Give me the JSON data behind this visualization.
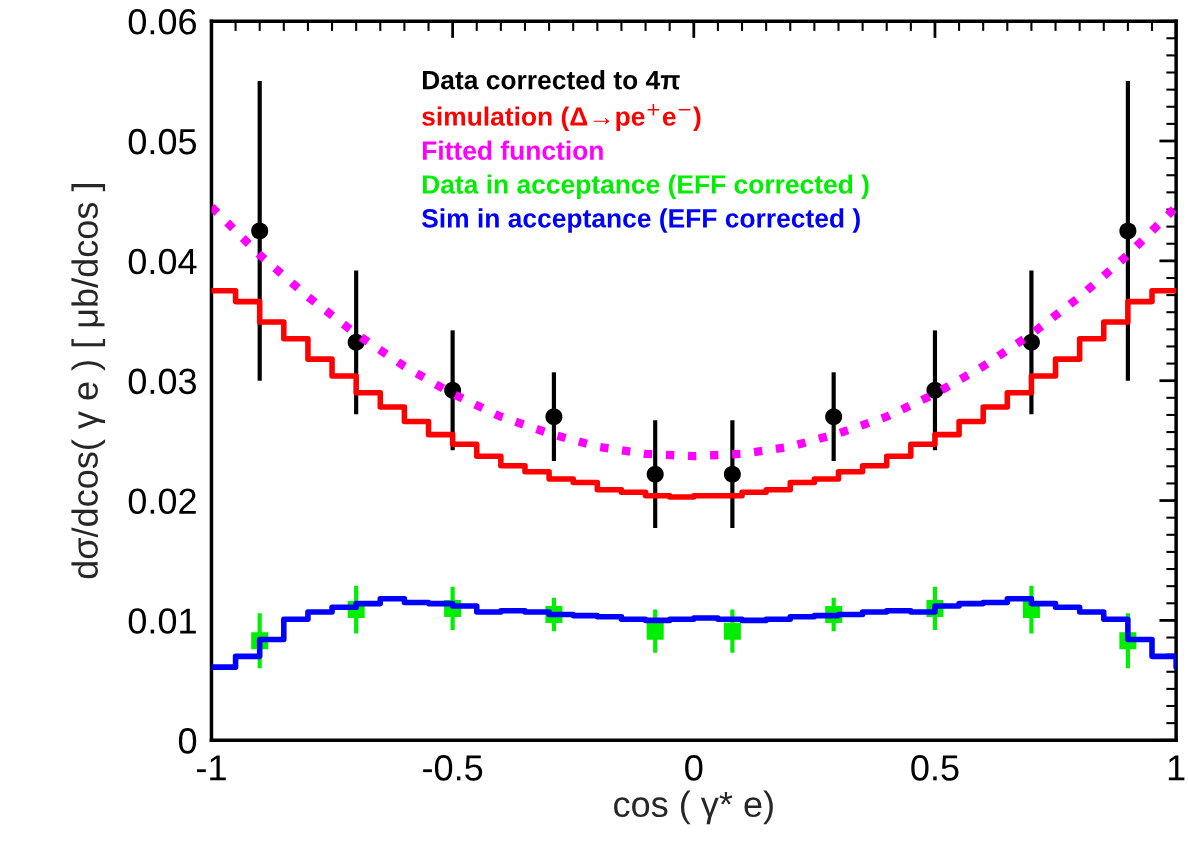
{
  "chart_data": {
    "type": "line",
    "xlabel": "cos ( γ* e)",
    "ylabel": "dσ/dcos( γ e ) [ μb/dcos ]",
    "xlim": [
      -1,
      1
    ],
    "ylim": [
      0,
      0.06
    ],
    "xticks": [
      -1,
      -0.5,
      0,
      0.5,
      1
    ],
    "yticks": [
      0,
      0.01,
      0.02,
      0.03,
      0.04,
      0.05,
      0.06
    ],
    "grid": false,
    "legend": "top",
    "series": [
      {
        "name": "Data corrected to 4π",
        "type": "scatter",
        "marker": "circle",
        "color": "#000000",
        "x": [
          -0.9,
          -0.7,
          -0.5,
          -0.29,
          -0.08,
          0.08,
          0.29,
          0.5,
          0.7,
          0.9
        ],
        "values": [
          0.0425,
          0.0332,
          0.0292,
          0.027,
          0.0222,
          0.0222,
          0.027,
          0.0292,
          0.0332,
          0.0425
        ],
        "errors": [
          0.0125,
          0.006,
          0.005,
          0.0037,
          0.0045,
          0.0045,
          0.0037,
          0.005,
          0.006,
          0.0125
        ]
      },
      {
        "name": "simulation (Δ→pe$^{+}$e$^{−}$)",
        "type": "step",
        "color": "#ff0000",
        "x": [
          -1,
          -0.95,
          -0.9,
          -0.85,
          -0.8,
          -0.75,
          -0.7,
          -0.65,
          -0.6,
          -0.55,
          -0.5,
          -0.45,
          -0.4,
          -0.35,
          -0.3,
          -0.25,
          -0.2,
          -0.15,
          -0.1,
          -0.05,
          0,
          0.05,
          0.1,
          0.15,
          0.2,
          0.25,
          0.3,
          0.35,
          0.4,
          0.45,
          0.5,
          0.55,
          0.6,
          0.65,
          0.7,
          0.75,
          0.8,
          0.85,
          0.9,
          0.95,
          1
        ],
        "values": [
          0.0375,
          0.0366,
          0.0349,
          0.0335,
          0.0318,
          0.0304,
          0.029,
          0.0278,
          0.0266,
          0.0255,
          0.0247,
          0.0237,
          0.0229,
          0.0224,
          0.0218,
          0.0215,
          0.0209,
          0.0207,
          0.0204,
          0.0203,
          0.0204,
          0.0204,
          0.0207,
          0.0209,
          0.0215,
          0.0218,
          0.0224,
          0.0229,
          0.0237,
          0.0247,
          0.0255,
          0.0266,
          0.0278,
          0.029,
          0.0304,
          0.0318,
          0.0335,
          0.0349,
          0.0366,
          0.0375,
          0.0375
        ]
      },
      {
        "name": "Fitted function",
        "line_style": "dotted",
        "color": "#ff00ff",
        "x": [
          -1,
          -0.9,
          -0.8,
          -0.7,
          -0.6,
          -0.5,
          -0.4,
          -0.3,
          -0.2,
          -0.1,
          0,
          0.1,
          0.2,
          0.3,
          0.4,
          0.5,
          0.6,
          0.7,
          0.8,
          0.9,
          1
        ],
        "values": [
          0.0445,
          0.0405,
          0.037,
          0.0339,
          0.0312,
          0.0289,
          0.027,
          0.0256,
          0.0245,
          0.0239,
          0.0237,
          0.0239,
          0.0245,
          0.0256,
          0.027,
          0.0289,
          0.0312,
          0.0339,
          0.037,
          0.0405,
          0.0445
        ]
      },
      {
        "name": "Data in acceptance (EFF corrected )",
        "type": "scatter",
        "marker": "square",
        "color": "#00ee00",
        "x": [
          -0.9,
          -0.7,
          -0.5,
          -0.29,
          -0.08,
          0.08,
          0.29,
          0.5,
          0.7,
          0.9
        ],
        "values": [
          0.0083,
          0.0109,
          0.011,
          0.0105,
          0.0091,
          0.0091,
          0.0105,
          0.011,
          0.0109,
          0.0083
        ],
        "errors": [
          0.0023,
          0.002,
          0.0018,
          0.0014,
          0.0018,
          0.0018,
          0.0014,
          0.0018,
          0.002,
          0.0023
        ]
      },
      {
        "name": "Sim in acceptance (EFF corrected )",
        "type": "step",
        "color": "#0000ff",
        "x": [
          -1,
          -0.95,
          -0.9,
          -0.85,
          -0.8,
          -0.75,
          -0.7,
          -0.65,
          -0.6,
          -0.55,
          -0.5,
          -0.45,
          -0.4,
          -0.35,
          -0.3,
          -0.25,
          -0.2,
          -0.15,
          -0.1,
          -0.05,
          0,
          0.05,
          0.1,
          0.15,
          0.2,
          0.25,
          0.3,
          0.35,
          0.4,
          0.45,
          0.5,
          0.55,
          0.6,
          0.65,
          0.7,
          0.75,
          0.8,
          0.85,
          0.9,
          0.95,
          1
        ],
        "values": [
          0.0061,
          0.007,
          0.0084,
          0.0101,
          0.0107,
          0.0111,
          0.0114,
          0.0118,
          0.0115,
          0.0114,
          0.0112,
          0.0107,
          0.0108,
          0.0107,
          0.0105,
          0.0104,
          0.0103,
          0.0101,
          0.01,
          0.0101,
          0.0102,
          0.0101,
          0.01,
          0.0101,
          0.0103,
          0.0104,
          0.0105,
          0.0107,
          0.0108,
          0.0107,
          0.0112,
          0.0114,
          0.0115,
          0.0118,
          0.0114,
          0.0111,
          0.0107,
          0.0101,
          0.0084,
          0.007,
          0.0061
        ]
      }
    ]
  }
}
